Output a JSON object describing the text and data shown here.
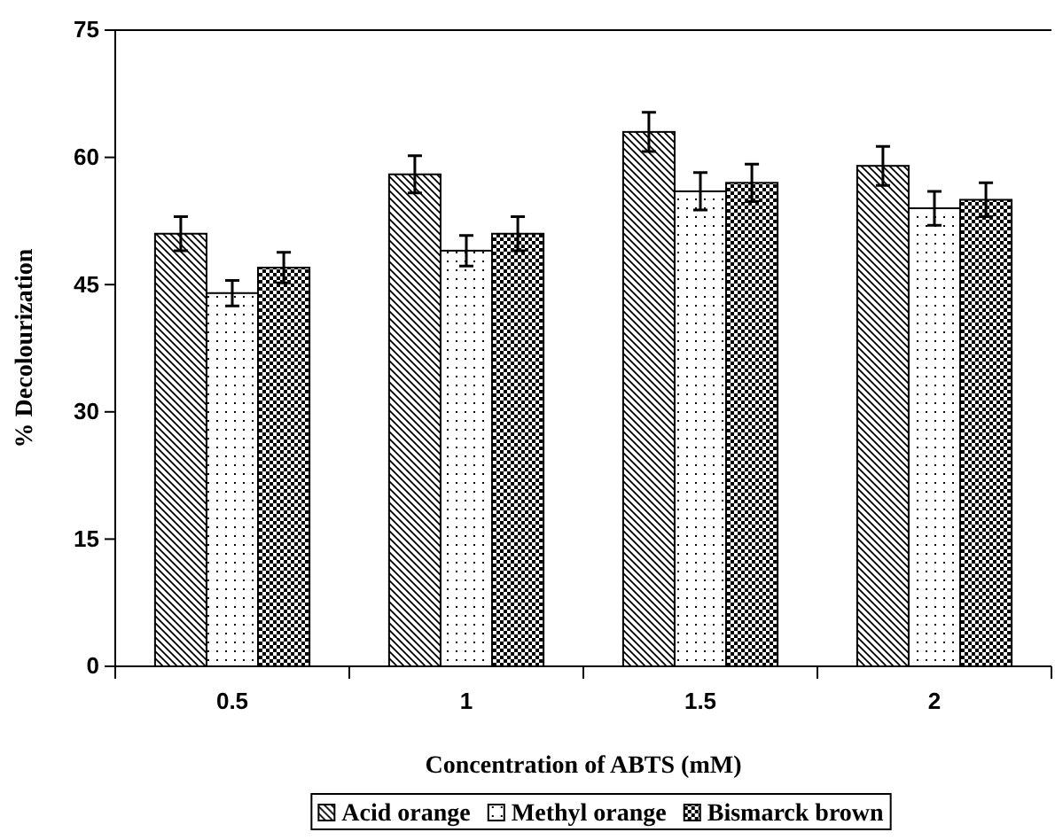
{
  "chart_data": {
    "type": "bar",
    "xlabel": "Concentration of ABTS (mM)",
    "ylabel": "% Decolourization",
    "categories": [
      "0.5",
      "1",
      "1.5",
      "2"
    ],
    "series": [
      {
        "name": "Acid orange",
        "color": "#000000",
        "values": [
          51,
          58,
          63,
          59
        ],
        "errors": [
          2,
          2.2,
          2.3,
          2.3
        ]
      },
      {
        "name": "Methyl orange",
        "color": "#000000",
        "values": [
          44,
          49,
          56,
          54
        ],
        "errors": [
          1.5,
          1.8,
          2.2,
          2
        ]
      },
      {
        "name": "Bismarck brown",
        "color": "#000000",
        "values": [
          47,
          51,
          57,
          55
        ],
        "errors": [
          1.8,
          2,
          2.2,
          2
        ]
      }
    ],
    "ylim": [
      0,
      75
    ],
    "yticks": [
      0,
      15,
      30,
      45,
      60,
      75
    ],
    "grid": false,
    "legend": "bottom"
  }
}
